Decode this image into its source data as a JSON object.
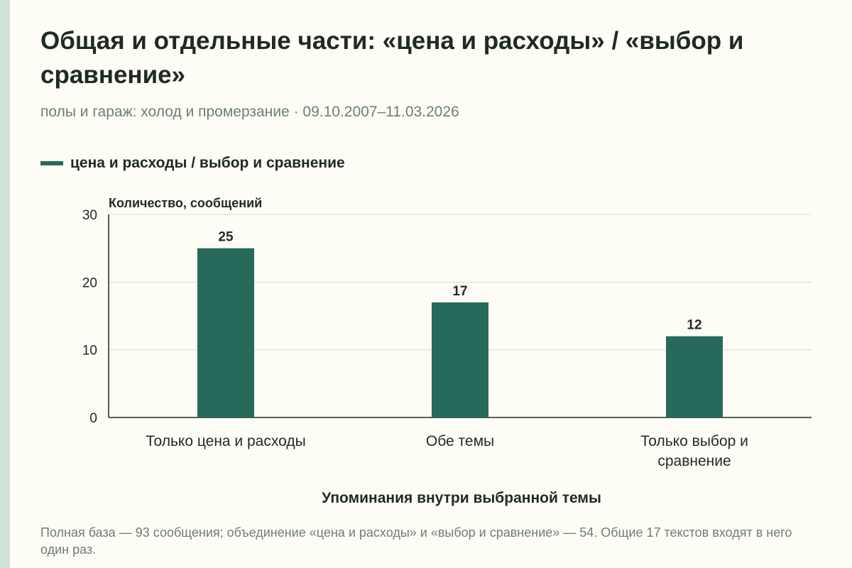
{
  "chart_data": {
    "type": "bar",
    "title": "Общая и отдельные части: «цена и расходы» / «выбор и сравнение»",
    "subtitle": "полы и гараж: холод и промерзание · 09.10.2007–11.03.2026",
    "legend": "цена и расходы / выбор и сравнение",
    "ylabel": "Количество, сообщений",
    "xlabel": "Упоминания внутри выбранной темы",
    "categories": [
      "Только цена и расходы",
      "Обе темы",
      "Только выбор и сравнение"
    ],
    "category_lines": [
      [
        "Только цена и расходы"
      ],
      [
        "Обе темы"
      ],
      [
        "Только выбор и",
        "сравнение"
      ]
    ],
    "values": [
      25,
      17,
      12
    ],
    "ylim": [
      0,
      30
    ],
    "yticks": [
      0,
      10,
      20,
      30
    ],
    "grid": true,
    "legend_position": "top-left",
    "bar_color": "#27695a"
  },
  "footnote": "Полная база — 93 сообщения; объединение «цена и расходы» и «выбор и сравнение» — 54. Общие 17 текстов входят в него один раз."
}
